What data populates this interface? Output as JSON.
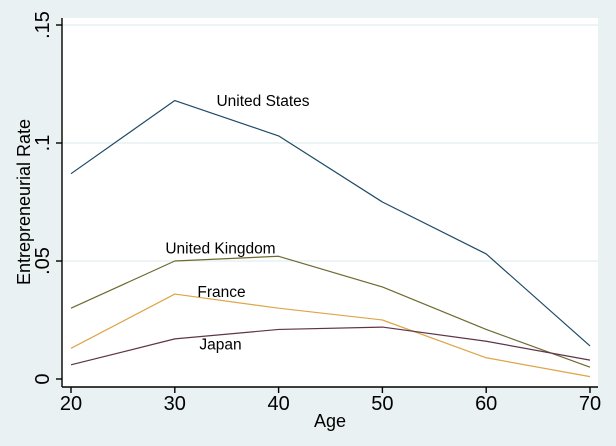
{
  "chart_data": {
    "type": "line",
    "title": "",
    "xlabel": "Age",
    "ylabel": "Entrepreneurial Rate",
    "x": [
      20,
      30,
      40,
      50,
      60,
      70
    ],
    "x_tick_labels": [
      "20",
      "30",
      "40",
      "50",
      "60",
      "70"
    ],
    "y_ticks": [
      0,
      0.05,
      0.1,
      0.15
    ],
    "y_tick_labels": [
      "0",
      ".05",
      ".1",
      ".15"
    ],
    "xlim": [
      20,
      70
    ],
    "ylim": [
      0,
      0.15
    ],
    "grid": true,
    "legend_position": "inline-labels",
    "series": [
      {
        "name": "United States",
        "color": "#1d4a66",
        "values": [
          0.087,
          0.118,
          0.103,
          0.075,
          0.053,
          0.014
        ],
        "label_at": {
          "x": 38.5,
          "y": 0.118
        }
      },
      {
        "name": "United Kingdom",
        "color": "#6e6a31",
        "values": [
          0.03,
          0.05,
          0.052,
          0.039,
          0.021,
          0.005
        ],
        "label_at": {
          "x": 34.4,
          "y": 0.0555
        }
      },
      {
        "name": "France",
        "color": "#dda548",
        "values": [
          0.013,
          0.036,
          0.03,
          0.025,
          0.009,
          0.001
        ],
        "label_at": {
          "x": 34.5,
          "y": 0.037
        }
      },
      {
        "name": "Japan",
        "color": "#5f3448",
        "values": [
          0.006,
          0.017,
          0.021,
          0.022,
          0.016,
          0.008
        ],
        "label_at": {
          "x": 34.4,
          "y": 0.0148
        }
      }
    ],
    "colors": {
      "figure_bg": "#e9f1f2",
      "plot_bg": "#ffffff",
      "axis": "#000000",
      "grid": "#e2edef",
      "text": "#000000"
    }
  }
}
